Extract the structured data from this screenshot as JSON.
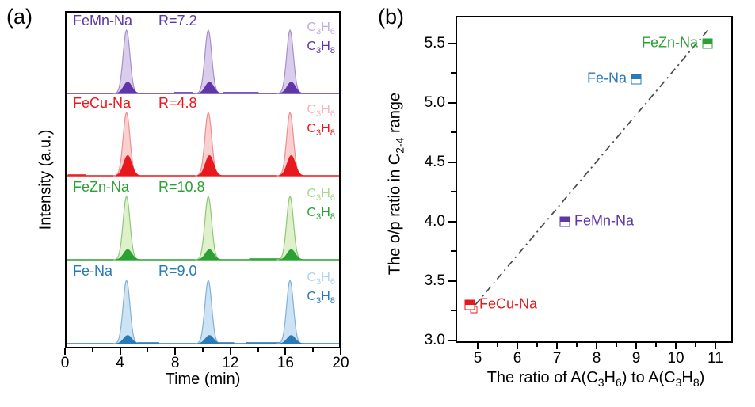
{
  "figure": {
    "panel_a_letter": "(a)",
    "panel_b_letter": "(b)"
  },
  "chart_data": [
    {
      "type": "area",
      "panel": "a",
      "description": "Stacked GC chromatograms, C3H6 (large light peak) and C3H8 (small dark peak) at three retention times",
      "xlabel": "Time (min)",
      "ylabel": "Intensity (a.u.)",
      "xlim": [
        0,
        20
      ],
      "x_ticks_major": [
        0,
        4,
        8,
        12,
        16,
        20
      ],
      "x_ticks_minor": [
        2,
        6,
        10,
        14,
        18
      ],
      "peak_times_min": [
        4.4,
        10.4,
        16.4
      ],
      "series": [
        {
          "name": "FeMn-Na",
          "r_label": "R=7.2",
          "ratio": 7.2,
          "color": "#5f35a8",
          "light_fill": "#d9cdeb",
          "light_stroke": "#a68fd0",
          "light_text": "#c0aede",
          "c3h6_rel_height": 1.0,
          "c3h8_rel_height": 0.18,
          "olefin_parts": [
            {
              "t": "C"
            },
            {
              "s": "3"
            },
            {
              "t": "H"
            },
            {
              "s": "6"
            }
          ],
          "paraffin_parts": [
            {
              "t": "C"
            },
            {
              "s": "3"
            },
            {
              "t": "H"
            },
            {
              "s": "8"
            }
          ],
          "noise_bands": [
            [
              7.9,
              9.3
            ],
            [
              11.5,
              14.1
            ]
          ]
        },
        {
          "name": "FeCu-Na",
          "r_label": "R=4.8",
          "ratio": 4.8,
          "color": "#e8191d",
          "light_fill": "#f9cfcf",
          "light_stroke": "#ee8f8f",
          "light_text": "#f5b5b5",
          "c3h6_rel_height": 1.0,
          "c3h8_rel_height": 0.32,
          "olefin_parts": [
            {
              "t": "C"
            },
            {
              "s": "3"
            },
            {
              "t": "H"
            },
            {
              "s": "6"
            }
          ],
          "paraffin_parts": [
            {
              "t": "C"
            },
            {
              "s": "3"
            },
            {
              "t": "H"
            },
            {
              "s": "8"
            }
          ],
          "noise_bands": [
            [
              0.1,
              1.4
            ]
          ]
        },
        {
          "name": "FeZn-Na",
          "r_label": "R=10.8",
          "ratio": 10.8,
          "color": "#2ba135",
          "light_fill": "#def0cc",
          "light_stroke": "#8cc973",
          "light_text": "#a6d98a",
          "c3h6_rel_height": 1.0,
          "c3h8_rel_height": 0.16,
          "olefin_parts": [
            {
              "t": "C"
            },
            {
              "s": "3"
            },
            {
              "t": "H"
            },
            {
              "s": "6"
            }
          ],
          "paraffin_parts": [
            {
              "t": "C"
            },
            {
              "s": "3"
            },
            {
              "t": "H"
            },
            {
              "s": "8"
            }
          ],
          "noise_bands": [
            [
              13.4,
              16.0
            ]
          ]
        },
        {
          "name": "Fe-Na",
          "r_label": "R=9.0",
          "ratio": 9.0,
          "color": "#2a7ab8",
          "light_fill": "#cde2f2",
          "light_stroke": "#7fb2dc",
          "light_text": "#b5d3eb",
          "c3h6_rel_height": 1.0,
          "c3h8_rel_height": 0.13,
          "olefin_parts": [
            {
              "t": "C"
            },
            {
              "s": "3"
            },
            {
              "t": "H"
            },
            {
              "s": "6"
            }
          ],
          "paraffin_parts": [
            {
              "t": "C"
            },
            {
              "s": "3"
            },
            {
              "t": "H"
            },
            {
              "s": "8"
            }
          ],
          "noise_bands": [
            [
              5.2,
              6.8
            ],
            [
              10.7,
              12.3
            ],
            [
              13.2,
              15.7
            ]
          ]
        }
      ]
    },
    {
      "type": "scatter",
      "panel": "b",
      "xlabel_parts": [
        {
          "t": "The ratio of A(C"
        },
        {
          "s": "3"
        },
        {
          "t": "H"
        },
        {
          "s": "6"
        },
        {
          "t": ") to A(C"
        },
        {
          "s": "3"
        },
        {
          "t": "H"
        },
        {
          "s": "8"
        },
        {
          "t": ")"
        }
      ],
      "ylabel_parts": [
        {
          "t": "The o/p ratio in C"
        },
        {
          "s": "2-4"
        },
        {
          "t": " range"
        }
      ],
      "xlim": [
        4.44,
        11.44
      ],
      "ylim": [
        2.98,
        5.73
      ],
      "x_ticks": [
        5,
        6,
        7,
        8,
        9,
        10,
        11
      ],
      "x_tick_labels": [
        "5",
        "6",
        "7",
        "8",
        "9",
        "10",
        "11"
      ],
      "x_ticks_minor": [
        5.5,
        6.5,
        7.5,
        8.5,
        9.5,
        10.5
      ],
      "y_ticks": [
        3.0,
        3.5,
        4.0,
        4.5,
        5.0,
        5.5
      ],
      "y_tick_labels": [
        "3.0",
        "3.5",
        "4.0",
        "4.5",
        "5.0",
        "5.5"
      ],
      "y_ticks_minor": [
        3.25,
        3.75,
        4.25,
        4.75,
        5.25
      ],
      "grid": false,
      "points": [
        {
          "label": "FeCu-Na",
          "x": 4.8,
          "y": 3.3,
          "color": "#e8191d",
          "label_side": "right",
          "secondary_marker": {
            "x": 4.9,
            "y": 3.26
          }
        },
        {
          "label": "FeMn-Na",
          "x": 7.2,
          "y": 4.0,
          "color": "#5f35a8",
          "label_side": "right"
        },
        {
          "label": "Fe-Na",
          "x": 9.0,
          "y": 5.2,
          "color": "#2a7ab8",
          "label_side": "left"
        },
        {
          "label": "FeZn-Na",
          "x": 10.8,
          "y": 5.5,
          "color": "#2ba135",
          "label_side": "left"
        }
      ],
      "fit_line": {
        "x1": 4.94,
        "y1": 3.3,
        "x2": 10.86,
        "y2": 5.63,
        "style": "dash-dot",
        "color": "#4a4a4a"
      }
    }
  ]
}
